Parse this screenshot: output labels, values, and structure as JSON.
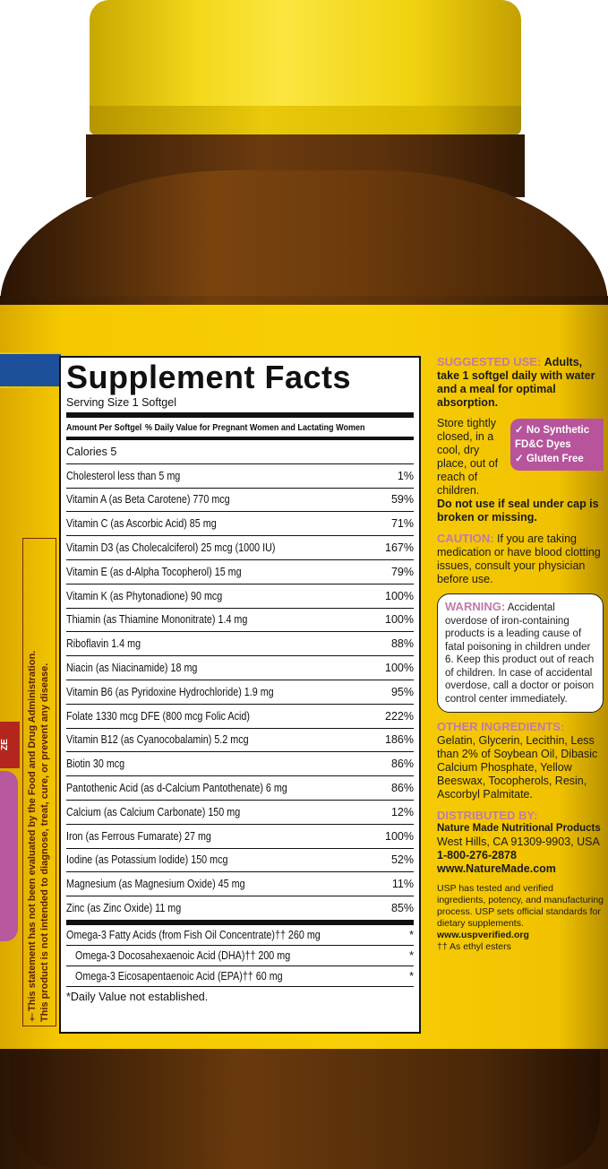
{
  "colors": {
    "cap": "#f3d81a",
    "glass": "#6f3d0d",
    "label": "#f8cf06",
    "accent_pink": "#c27ba8",
    "badge": "#b7549c",
    "blue_band": "#1d4f9a"
  },
  "side_statement": {
    "line1": "†This statement has not been evaluated by the Food and Drug Administration.",
    "line2": "This product is not intended to diagnose, treat, cure, or prevent any disease."
  },
  "red_tag": "ZE",
  "facts": {
    "title": "Supplement Facts",
    "serving": "Serving Size 1 Softgel",
    "header_amount": "Amount Per Softgel",
    "header_dv": "% Daily Value for Pregnant Women and Lactating Women",
    "calories": "Calories 5",
    "rows": [
      {
        "name": "Cholesterol  less than 5 mg",
        "dv": "1%"
      },
      {
        "name": "Vitamin A (as Beta Carotene)  770 mcg",
        "dv": "59%"
      },
      {
        "name": "Vitamin C (as Ascorbic Acid)  85 mg",
        "dv": "71%"
      },
      {
        "name": "Vitamin D3 (as Cholecalciferol)  25 mcg (1000 IU)",
        "dv": "167%"
      },
      {
        "name": "Vitamin E (as d-Alpha Tocopherol)  15 mg",
        "dv": "79%"
      },
      {
        "name": "Vitamin K (as Phytonadione)  90 mcg",
        "dv": "100%"
      },
      {
        "name": "Thiamin (as Thiamine Mononitrate)  1.4 mg",
        "dv": "100%"
      },
      {
        "name": "Riboflavin  1.4 mg",
        "dv": "88%"
      },
      {
        "name": "Niacin (as Niacinamide)  18 mg",
        "dv": "100%"
      },
      {
        "name": "Vitamin B6 (as Pyridoxine Hydrochloride)  1.9 mg",
        "dv": "95%"
      },
      {
        "name": "Folate  1330 mcg DFE (800 mcg Folic Acid)",
        "dv": "222%"
      },
      {
        "name": "Vitamin B12 (as Cyanocobalamin)  5.2 mcg",
        "dv": "186%"
      },
      {
        "name": "Biotin  30 mcg",
        "dv": "86%"
      },
      {
        "name": "Pantothenic Acid (as d-Calcium Pantothenate)  6 mg",
        "dv": "86%"
      },
      {
        "name": "Calcium (as Calcium Carbonate)  150 mg",
        "dv": "12%"
      },
      {
        "name": "Iron (as Ferrous Fumarate)  27 mg",
        "dv": "100%"
      },
      {
        "name": "Iodine (as Potassium Iodide)  150 mcg",
        "dv": "52%"
      },
      {
        "name": "Magnesium (as Magnesium Oxide)  45 mg",
        "dv": "11%"
      },
      {
        "name": "Zinc (as Zinc Oxide)  11 mg",
        "dv": "85%"
      }
    ],
    "omega": [
      {
        "name": "Omega-3 Fatty Acids (from Fish Oil Concentrate)†† 260 mg",
        "dv": "*"
      },
      {
        "name": "Omega-3 Docosahexaenoic Acid (DHA)†† 200 mg",
        "dv": "*"
      },
      {
        "name": "Omega-3 Eicosapentaenoic Acid (EPA)†† 60 mg",
        "dv": "*"
      }
    ],
    "footnote": "*Daily Value not established."
  },
  "right": {
    "suggested_label": "SUGGESTED USE:",
    "suggested_text": "Adults, take 1 softgel daily with water and a meal for optimal absorption.",
    "store_text": "Store tightly closed, in a cool, dry place, out of reach of children.",
    "seal_text": "Do not use if seal under cap is broken or missing.",
    "badges": [
      "No Synthetic FD&C Dyes",
      "Gluten Free"
    ],
    "caution_label": "CAUTION:",
    "caution_text": "If you are taking medication or have blood clotting issues, consult your physician before use.",
    "warning_label": "WARNING:",
    "warning_text": "Accidental overdose of iron-containing products is a leading cause of fatal poisoning in children under 6. Keep this product out of reach of children. In case of accidental overdose, call a doctor or poison control center immediately.",
    "ingredients_label": "OTHER INGREDIENTS:",
    "ingredients_text": "Gelatin, Glycerin, Lecithin, Less than 2% of Soybean Oil, Dibasic Calcium Phosphate, Yellow Beeswax, Tocopherols, Resin, Ascorbyl Palmitate.",
    "distributed_label": "DISTRIBUTED BY:",
    "company": "Nature Made Nutritional Products",
    "address": "West Hills, CA 91309-9903, USA",
    "phone": "1-800-276-2878",
    "website": "www.NatureMade.com",
    "usp_text": "USP has tested and verified ingredients, potency, and manufacturing process. USP sets official standards for dietary supplements.",
    "usp_site": "www.uspverified.org",
    "esters": "†† As ethyl esters"
  }
}
